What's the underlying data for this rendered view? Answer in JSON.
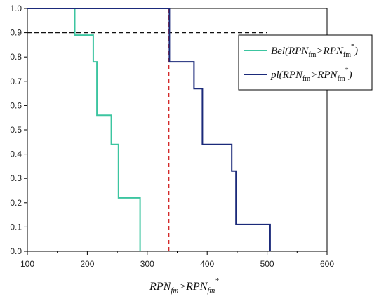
{
  "chart_data": {
    "type": "line",
    "title": "",
    "xlabel": "",
    "ylabel": "",
    "xlim": [
      100,
      600
    ],
    "ylim": [
      0,
      1.0
    ],
    "x_ticks": [
      100,
      200,
      300,
      400,
      500,
      600
    ],
    "y_ticks": [
      0.0,
      0.1,
      0.2,
      0.3,
      0.4,
      0.5,
      0.6,
      0.7,
      0.8,
      0.9,
      1.0
    ],
    "x_tick_labels": [
      "100",
      "200",
      "300",
      "400",
      "500",
      "600"
    ],
    "y_tick_labels": [
      "0.0",
      "0.1",
      "0.2",
      "0.3",
      "0.4",
      "0.5",
      "0.6",
      "0.7",
      "0.8",
      "0.9",
      "1.0"
    ],
    "grid": false,
    "legend_position": "top-right",
    "xlabel_parts": {
      "base1": "RPN",
      "sub1": "fm",
      "op": ">",
      "base2": "RPN",
      "sub2": "fm",
      "sup2": "*"
    },
    "series": [
      {
        "legend_prefix": "Bel",
        "color": "#3cc5a0",
        "step": true,
        "x": [
          100,
          179,
          179,
          210,
          210,
          216,
          216,
          240,
          240,
          252,
          252,
          288,
          288
        ],
        "y": [
          1.0,
          1.0,
          0.89,
          0.89,
          0.78,
          0.78,
          0.56,
          0.56,
          0.44,
          0.44,
          0.22,
          0.22,
          0.0
        ]
      },
      {
        "legend_prefix": "pl",
        "color": "#1b2a7a",
        "step": true,
        "x": [
          100,
          337,
          337,
          378,
          378,
          392,
          392,
          441,
          441,
          448,
          448,
          505,
          505
        ],
        "y": [
          1.0,
          1.0,
          0.78,
          0.78,
          0.67,
          0.67,
          0.44,
          0.44,
          0.33,
          0.33,
          0.11,
          0.11,
          0.0
        ]
      }
    ],
    "reference_lines": [
      {
        "orientation": "horizontal",
        "value": 0.9,
        "color": "#111111",
        "style": "dashed",
        "x_range": [
          100,
          500
        ]
      },
      {
        "orientation": "vertical",
        "value": 336,
        "color": "#d42a2a",
        "style": "dashed"
      }
    ]
  }
}
